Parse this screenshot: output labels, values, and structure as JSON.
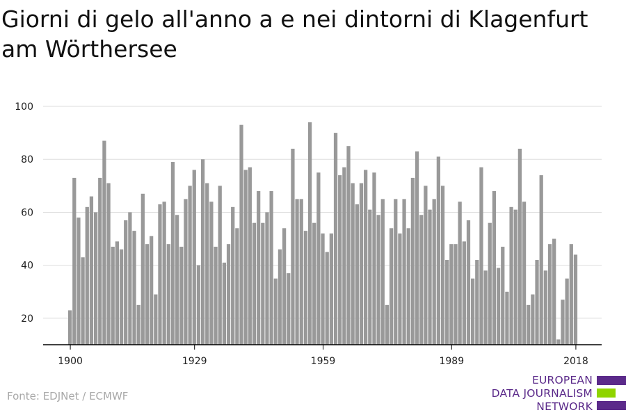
{
  "title": "Giorni di gelo all'anno a e nei dintorni di Klagenfurt am Wörthersee",
  "source": "Fonte: EDJNet / ECMWF",
  "logo": {
    "lines": [
      "EUROPEAN",
      "DATA JOURNALISM",
      "NETWORK"
    ],
    "colors": {
      "purple": "#5b2a8a",
      "green": "#8fd400"
    }
  },
  "colors": {
    "bar": "#999999",
    "grid": "#dddddd",
    "axis": "#000000"
  },
  "chart_data": {
    "type": "bar",
    "x_tick_labels": [
      "1900",
      "1929",
      "1959",
      "1989",
      "2018"
    ],
    "y_tick_labels": [
      "20",
      "40",
      "60",
      "80",
      "100"
    ],
    "ylim": [
      10,
      100
    ],
    "xlim": [
      1900,
      2018
    ],
    "grid": true,
    "x": [
      1900,
      1901,
      1902,
      1903,
      1904,
      1905,
      1906,
      1907,
      1908,
      1909,
      1910,
      1911,
      1912,
      1913,
      1914,
      1915,
      1916,
      1917,
      1918,
      1919,
      1920,
      1921,
      1922,
      1923,
      1924,
      1925,
      1926,
      1927,
      1928,
      1929,
      1930,
      1931,
      1932,
      1933,
      1934,
      1935,
      1936,
      1937,
      1938,
      1939,
      1940,
      1941,
      1942,
      1943,
      1944,
      1945,
      1946,
      1947,
      1948,
      1949,
      1950,
      1951,
      1952,
      1953,
      1954,
      1955,
      1956,
      1957,
      1958,
      1959,
      1960,
      1961,
      1962,
      1963,
      1964,
      1965,
      1966,
      1967,
      1968,
      1969,
      1970,
      1971,
      1972,
      1973,
      1974,
      1975,
      1976,
      1977,
      1978,
      1979,
      1980,
      1981,
      1982,
      1983,
      1984,
      1985,
      1986,
      1987,
      1988,
      1989,
      1990,
      1991,
      1992,
      1993,
      1994,
      1995,
      1996,
      1997,
      1998,
      1999,
      2000,
      2001,
      2002,
      2003,
      2004,
      2005,
      2006,
      2007,
      2008,
      2009,
      2010,
      2011,
      2012,
      2013,
      2014,
      2015,
      2016,
      2017,
      2018
    ],
    "values": [
      23,
      73,
      58,
      43,
      62,
      66,
      60,
      73,
      87,
      71,
      47,
      49,
      46,
      57,
      60,
      53,
      25,
      67,
      48,
      51,
      29,
      63,
      64,
      48,
      79,
      59,
      47,
      65,
      70,
      76,
      40,
      80,
      71,
      64,
      47,
      70,
      41,
      48,
      62,
      54,
      93,
      76,
      77,
      56,
      68,
      56,
      60,
      68,
      35,
      46,
      54,
      37,
      84,
      65,
      65,
      53,
      94,
      56,
      75,
      52,
      45,
      52,
      90,
      74,
      77,
      85,
      71,
      63,
      71,
      76,
      61,
      75,
      59,
      65,
      25,
      54,
      65,
      52,
      65,
      54,
      73,
      83,
      59,
      70,
      61,
      65,
      81,
      70,
      42,
      48,
      48,
      64,
      49,
      57,
      35,
      42,
      77,
      38,
      56,
      68,
      39,
      47,
      30,
      62,
      61,
      84,
      64,
      25,
      29,
      42,
      74,
      38,
      48,
      50,
      12,
      27,
      35,
      48,
      44
    ]
  }
}
